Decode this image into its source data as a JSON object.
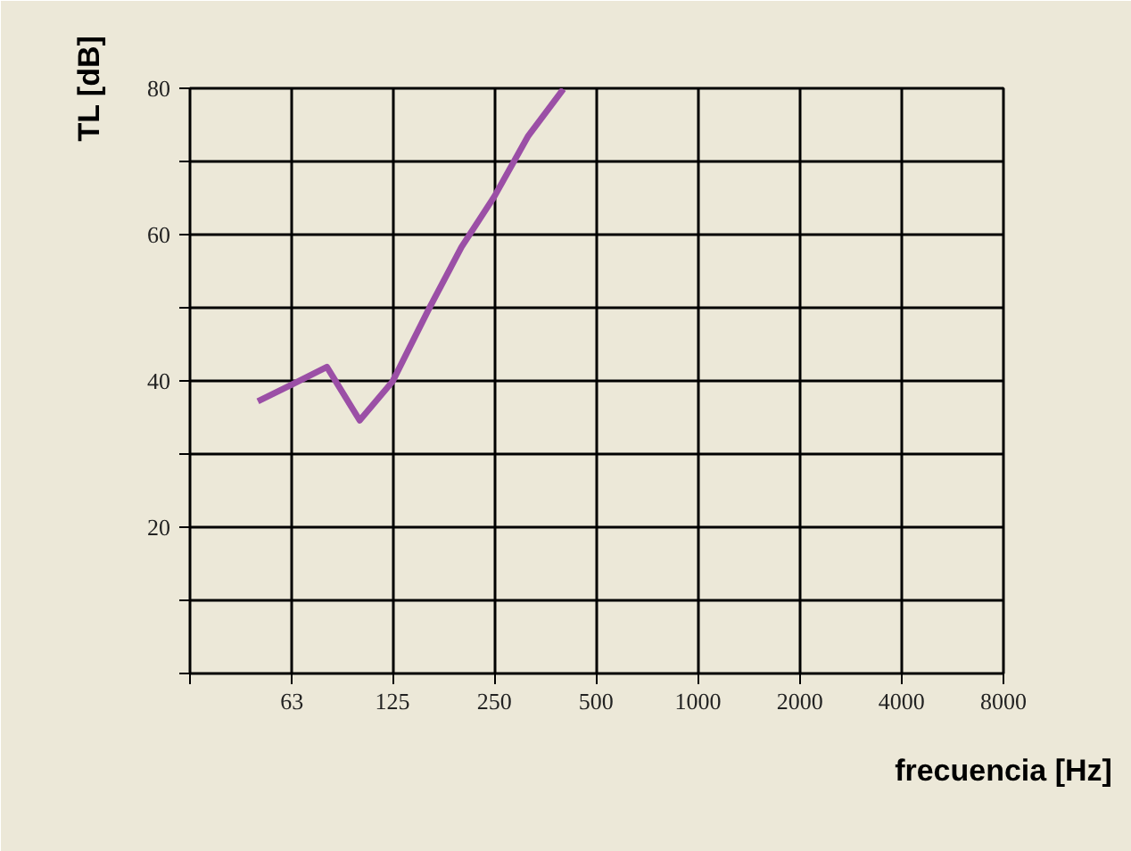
{
  "chart_data": {
    "type": "line",
    "xlabel": "frecuencia [Hz]",
    "ylabel": "TL [dB]",
    "log": "x",
    "x": [
      50,
      63,
      80,
      100,
      125,
      160,
      200,
      250,
      315,
      400
    ],
    "series": [
      {
        "color": "#9b4fa6",
        "values": [
          37.2,
          39.5,
          41.9,
          34.6,
          39.9,
          49.8,
          58.3,
          65.2,
          73.5,
          79.9
        ]
      }
    ],
    "xlim": [
      31.5,
      8000
    ],
    "xticks": [
      {
        "value": 31.5,
        "label": null
      },
      63,
      125,
      250,
      500,
      1000,
      2000,
      4000,
      8000
    ],
    "ylim": [
      0,
      80
    ],
    "yticks": [
      {
        "value": 0,
        "label": null
      },
      {
        "value": 10,
        "label": null
      },
      20,
      {
        "value": 30,
        "label": null
      },
      40,
      {
        "value": 50,
        "label": null
      },
      60,
      {
        "value": 70,
        "label": null
      },
      80
    ],
    "grid": true,
    "line_style": "solid",
    "marker": "none"
  }
}
